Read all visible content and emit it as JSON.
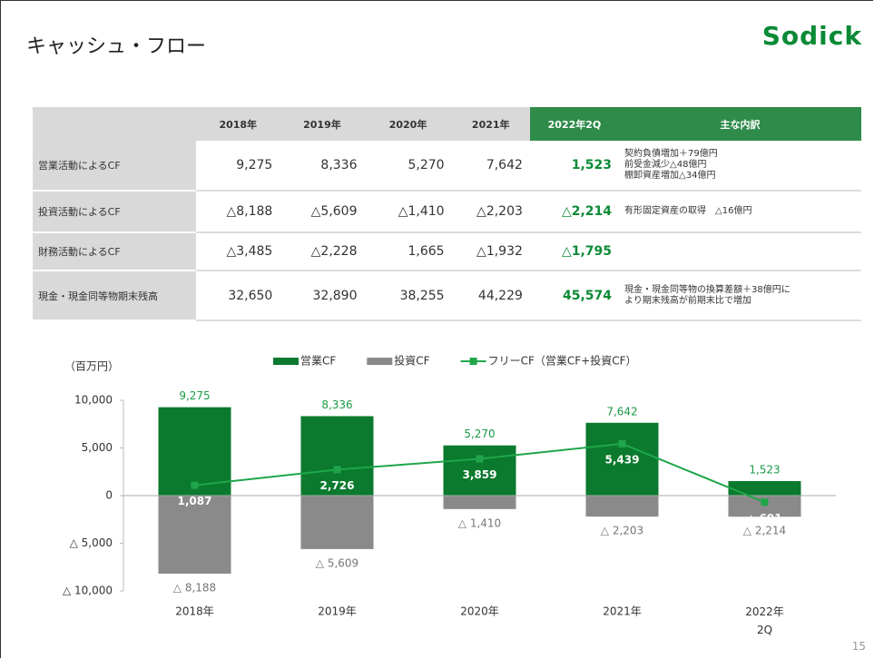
{
  "header": {
    "title": "キャッシュ・フロー",
    "logo": "Sodick"
  },
  "table": {
    "columns": [
      "",
      "2018年",
      "2019年",
      "2020年",
      "2021年",
      "2022年2Q",
      "主な内訳"
    ],
    "rows": [
      {
        "label": "営業活動によるCF",
        "values": [
          "9,275",
          "8,336",
          "5,270",
          "7,642",
          "1,523"
        ],
        "notes": [
          "契約負債増加＋79億円",
          "前受金減少△48億円",
          "棚卸資産増加△34億円"
        ]
      },
      {
        "label": "投資活動によるCF",
        "values": [
          "△8,188",
          "△5,609",
          "△1,410",
          "△2,203",
          "△2,214"
        ],
        "notes": [
          "有形固定資産の取得　△16億円"
        ]
      },
      {
        "label": "財務活動によるCF",
        "values": [
          "△3,485",
          "△2,228",
          "1,665",
          "△1,932",
          "△1,795"
        ],
        "notes": []
      },
      {
        "label": "現金・現金同等物期末残高",
        "values": [
          "32,650",
          "32,890",
          "38,255",
          "44,229",
          "45,574"
        ],
        "notes": [
          "現金・現金同等物の換算差額＋38億円に",
          "より期末残高が前期末比で増加"
        ]
      }
    ]
  },
  "chart_data": {
    "type": "bar",
    "y_label": "（百万円）",
    "categories": [
      "2018年",
      "2019年",
      "2020年",
      "2021年",
      "2022年\n2Q"
    ],
    "ylim": [
      -10000,
      10000
    ],
    "yticks": [
      {
        "value": 10000,
        "label": "10,000"
      },
      {
        "value": 5000,
        "label": "5,000"
      },
      0,
      {
        "value": -5000,
        "label": "△ 5,000"
      },
      {
        "value": -10000,
        "label": "△ 10,000"
      }
    ],
    "series": [
      {
        "name": "営業CF",
        "type": "bar",
        "color": "#0b7a2e",
        "values": [
          9275,
          8336,
          5270,
          7642,
          1523
        ],
        "value_labels": [
          "9,275",
          "8,336",
          "5,270",
          "7,642",
          "1,523"
        ]
      },
      {
        "name": "投資CF",
        "type": "bar",
        "color": "#8a8a8a",
        "values": [
          -8188,
          -5609,
          -1410,
          -2203,
          -2214
        ],
        "value_labels": [
          "△ 8,188",
          "△ 5,609",
          "△ 1,410",
          "△ 2,203",
          "△ 2,214"
        ]
      },
      {
        "name": "フリーCF（営業CF+投資CF）",
        "type": "line",
        "color": "#1fa64a",
        "values": [
          1087,
          2726,
          3859,
          5439,
          -691
        ],
        "value_labels": [
          "1,087",
          "2,726",
          "3,859",
          "5,439",
          "△ 691"
        ]
      }
    ]
  },
  "page_number": "15"
}
